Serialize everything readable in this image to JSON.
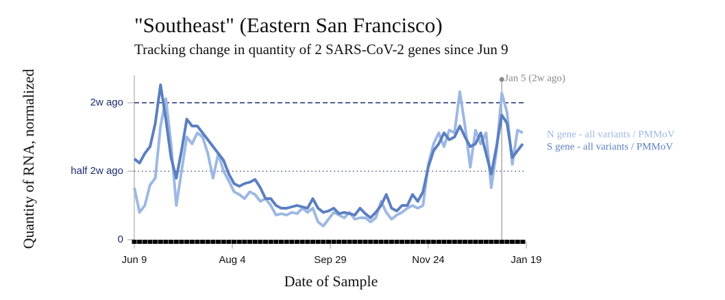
{
  "chart_data": {
    "type": "line",
    "title": "\"Southeast\" (Eastern San Francisco)",
    "subtitle": "Tracking change in quantity of 2 SARS-CoV-2 genes since Jun 9",
    "x_label": "Date of Sample",
    "y_label": "Quantity of RNA, normalized",
    "x": [
      "Jun 9",
      "Jun 12",
      "Jun 15",
      "Jun 18",
      "Jun 21",
      "Jun 24",
      "Jun 27",
      "Jun 30",
      "Jul 3",
      "Jul 6",
      "Jul 9",
      "Jul 12",
      "Jul 15",
      "Jul 18",
      "Jul 21",
      "Jul 24",
      "Jul 27",
      "Jul 30",
      "Aug 2",
      "Aug 5",
      "Aug 8",
      "Aug 11",
      "Aug 14",
      "Aug 17",
      "Aug 20",
      "Aug 23",
      "Aug 26",
      "Aug 29",
      "Sep 1",
      "Sep 4",
      "Sep 7",
      "Sep 10",
      "Sep 13",
      "Sep 16",
      "Sep 19",
      "Sep 22",
      "Sep 25",
      "Sep 28",
      "Oct 1",
      "Oct 4",
      "Oct 7",
      "Oct 10",
      "Oct 13",
      "Oct 16",
      "Oct 19",
      "Oct 22",
      "Oct 25",
      "Oct 28",
      "Oct 31",
      "Nov 3",
      "Nov 6",
      "Nov 9",
      "Nov 12",
      "Nov 15",
      "Nov 18",
      "Nov 21",
      "Nov 24",
      "Nov 27",
      "Nov 30",
      "Dec 3",
      "Dec 6",
      "Dec 9",
      "Dec 12",
      "Dec 15",
      "Dec 18",
      "Dec 21",
      "Dec 24",
      "Dec 27",
      "Dec 30",
      "Jan 2",
      "Jan 5",
      "Jan 8",
      "Jan 11",
      "Jan 14",
      "Jan 17"
    ],
    "series": [
      {
        "name": "N gene - all variants / PMMoV",
        "color": "#9db8e3",
        "values": [
          0.38,
          0.2,
          0.25,
          0.4,
          0.45,
          0.83,
          1.03,
          0.7,
          0.25,
          0.5,
          0.75,
          0.7,
          0.78,
          0.75,
          0.63,
          0.45,
          0.63,
          0.5,
          0.43,
          0.35,
          0.33,
          0.3,
          0.35,
          0.33,
          0.28,
          0.3,
          0.25,
          0.18,
          0.19,
          0.18,
          0.2,
          0.19,
          0.23,
          0.2,
          0.23,
          0.13,
          0.1,
          0.15,
          0.2,
          0.18,
          0.16,
          0.2,
          0.15,
          0.16,
          0.16,
          0.13,
          0.16,
          0.28,
          0.2,
          0.15,
          0.18,
          0.2,
          0.23,
          0.25,
          0.23,
          0.25,
          0.55,
          0.7,
          0.78,
          0.68,
          0.8,
          0.78,
          1.08,
          0.83,
          0.53,
          0.8,
          0.7,
          0.78,
          0.38,
          0.65,
          1.07,
          0.93,
          0.55,
          0.8,
          0.78
        ]
      },
      {
        "name": "S gene - all variants / PMMoV",
        "color": "#5b7fc0",
        "values": [
          0.59,
          0.56,
          0.63,
          0.68,
          0.85,
          1.13,
          0.88,
          0.6,
          0.45,
          0.65,
          0.88,
          0.83,
          0.83,
          0.78,
          0.73,
          0.68,
          0.63,
          0.58,
          0.48,
          0.41,
          0.39,
          0.41,
          0.42,
          0.44,
          0.38,
          0.3,
          0.3,
          0.25,
          0.23,
          0.23,
          0.24,
          0.25,
          0.24,
          0.23,
          0.3,
          0.23,
          0.2,
          0.21,
          0.23,
          0.19,
          0.2,
          0.19,
          0.18,
          0.23,
          0.19,
          0.16,
          0.2,
          0.25,
          0.33,
          0.23,
          0.21,
          0.25,
          0.25,
          0.33,
          0.28,
          0.35,
          0.53,
          0.65,
          0.7,
          0.78,
          0.73,
          0.75,
          0.83,
          0.75,
          0.68,
          0.7,
          0.78,
          0.63,
          0.48,
          0.68,
          0.91,
          0.85,
          0.6,
          0.65,
          0.7
        ]
      }
    ],
    "xlim": [
      "Jun 9",
      "Jan 19"
    ],
    "xticks": [
      "Jun 9",
      "Aug 4",
      "Sep 29",
      "Nov 24",
      "Jan 19"
    ],
    "ylim": [
      0,
      1.2
    ],
    "yticks": [
      0,
      {
        "value": 0.5,
        "label": "half 2w ago"
      },
      {
        "value": 1,
        "label": "2w ago"
      }
    ],
    "annotation": {
      "x": "Jan 5",
      "label": "Jan 5 (2w ago)"
    }
  }
}
